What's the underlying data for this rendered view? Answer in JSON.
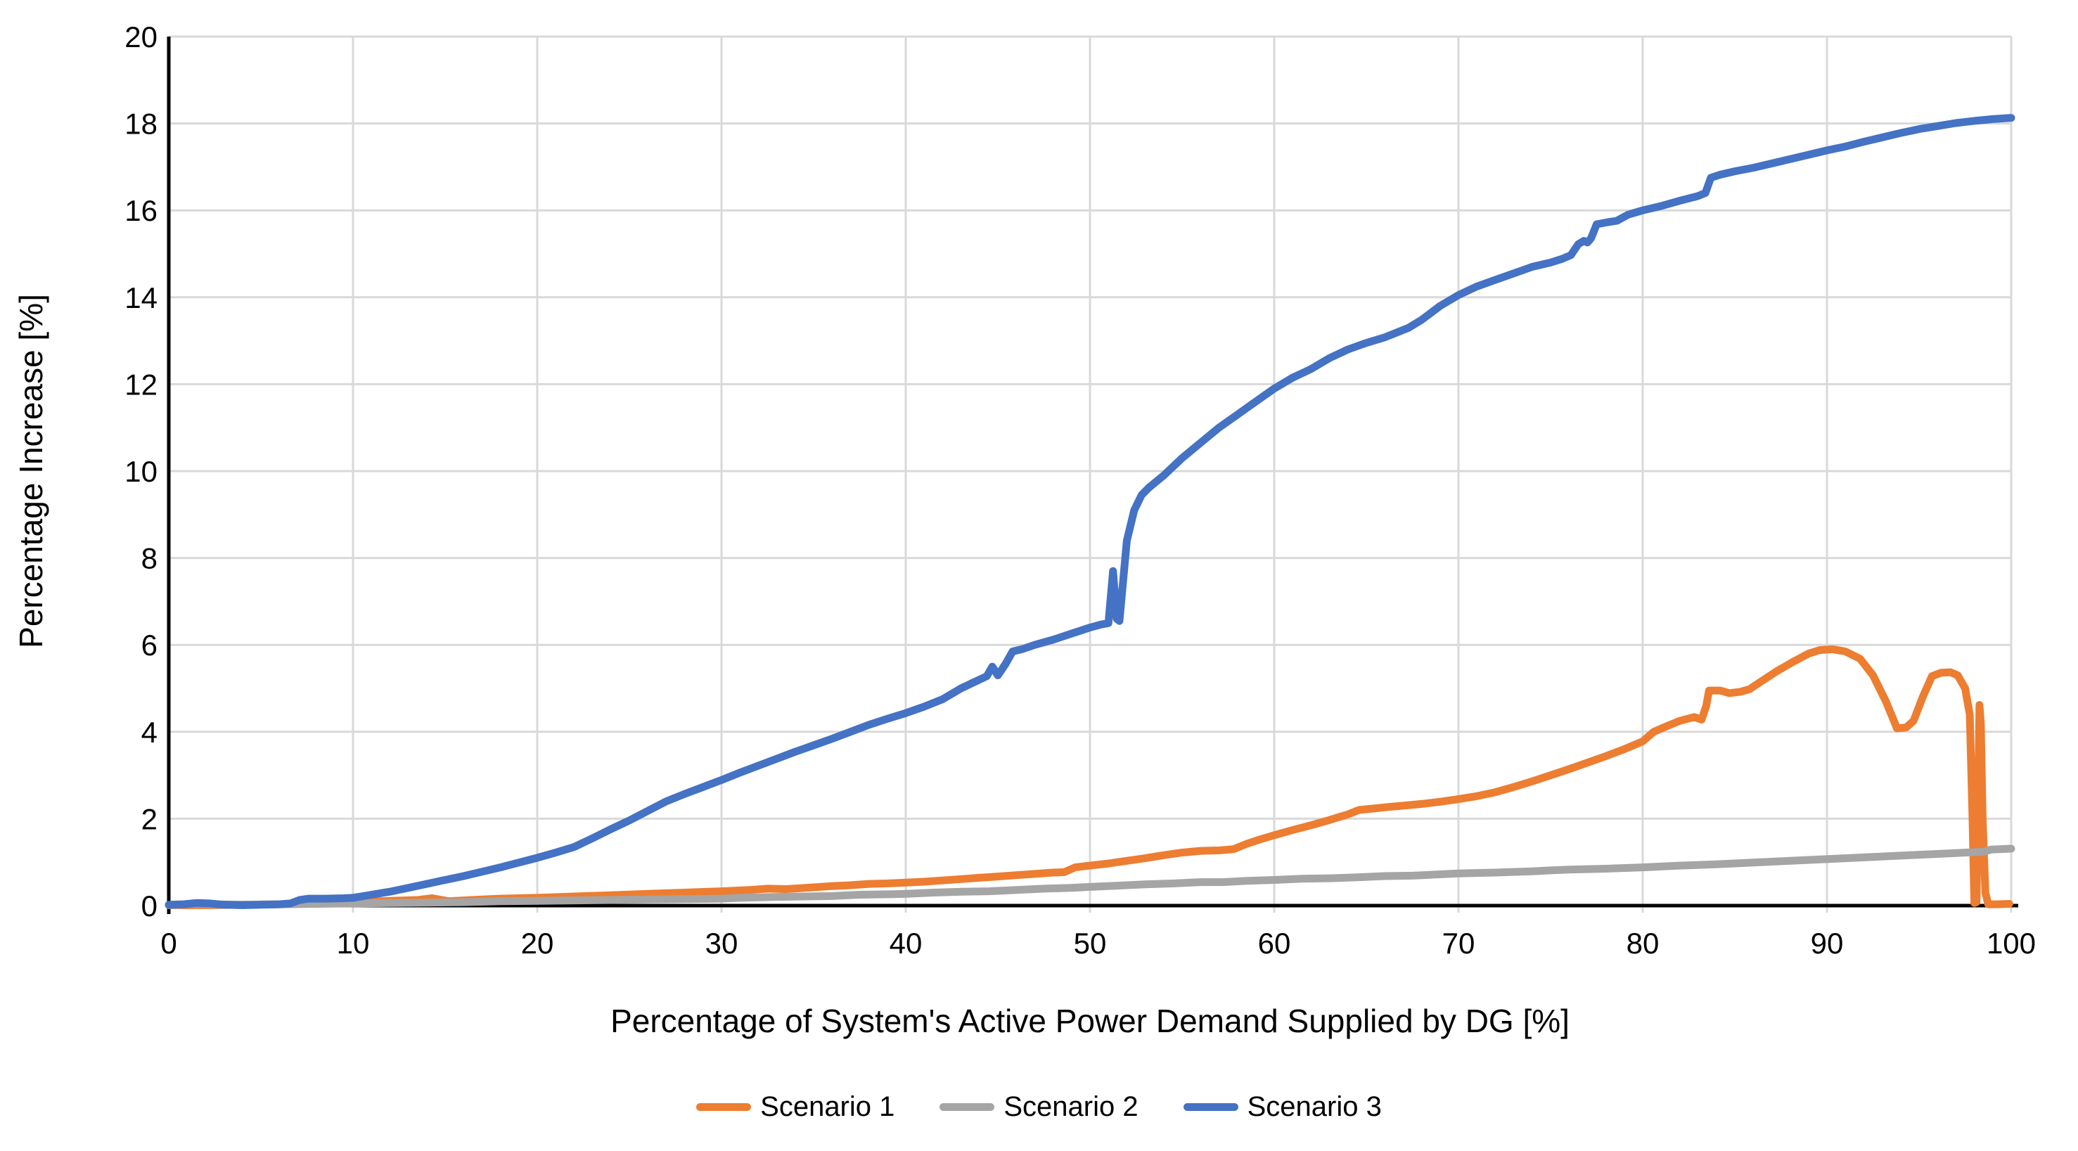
{
  "chart_data": {
    "type": "line",
    "title": "",
    "xlabel": "Percentage of System's Active Power Demand Supplied by DG [%]",
    "ylabel": "Percentage Increase [%]",
    "xlim": [
      0,
      100
    ],
    "ylim": [
      0,
      20
    ],
    "x_ticks": [
      0,
      10,
      20,
      30,
      40,
      50,
      60,
      70,
      80,
      90,
      100
    ],
    "y_ticks": [
      0,
      2,
      4,
      6,
      8,
      10,
      12,
      14,
      16,
      18,
      20
    ],
    "grid": true,
    "legend_position": "bottom-center",
    "gridline_color": "#D9D9D9",
    "axis_color": "#000000",
    "background_color": "#FFFFFF",
    "series": [
      {
        "name": "Scenario 1",
        "color": "#ED7D31",
        "points": [
          [
            0,
            0.01
          ],
          [
            2,
            0.01
          ],
          [
            4,
            0.02
          ],
          [
            6,
            0.03
          ],
          [
            8,
            0.05
          ],
          [
            10,
            0.08
          ],
          [
            12,
            0.11
          ],
          [
            13.5,
            0.13
          ],
          [
            14.3,
            0.17
          ],
          [
            15.2,
            0.1
          ],
          [
            16,
            0.12
          ],
          [
            17,
            0.14
          ],
          [
            18,
            0.16
          ],
          [
            19,
            0.17
          ],
          [
            20,
            0.18
          ],
          [
            22,
            0.21
          ],
          [
            24,
            0.24
          ],
          [
            26,
            0.27
          ],
          [
            28,
            0.3
          ],
          [
            30,
            0.33
          ],
          [
            31.5,
            0.36
          ],
          [
            32.5,
            0.39
          ],
          [
            33.5,
            0.38
          ],
          [
            35,
            0.42
          ],
          [
            36,
            0.45
          ],
          [
            37,
            0.47
          ],
          [
            38,
            0.5
          ],
          [
            39,
            0.51
          ],
          [
            40,
            0.53
          ],
          [
            41,
            0.55
          ],
          [
            42,
            0.58
          ],
          [
            43,
            0.61
          ],
          [
            44,
            0.64
          ],
          [
            45,
            0.67
          ],
          [
            46,
            0.7
          ],
          [
            47,
            0.73
          ],
          [
            48,
            0.76
          ],
          [
            48.6,
            0.77
          ],
          [
            49.2,
            0.88
          ],
          [
            50,
            0.92
          ],
          [
            51,
            0.97
          ],
          [
            52,
            1.03
          ],
          [
            53,
            1.09
          ],
          [
            54,
            1.16
          ],
          [
            55,
            1.22
          ],
          [
            56,
            1.26
          ],
          [
            57,
            1.27
          ],
          [
            57.8,
            1.3
          ],
          [
            58.5,
            1.42
          ],
          [
            59.2,
            1.52
          ],
          [
            60,
            1.62
          ],
          [
            61,
            1.74
          ],
          [
            62,
            1.85
          ],
          [
            63,
            1.97
          ],
          [
            64,
            2.1
          ],
          [
            64.6,
            2.2
          ],
          [
            65.5,
            2.24
          ],
          [
            66.2,
            2.27
          ],
          [
            67,
            2.3
          ],
          [
            68,
            2.34
          ],
          [
            69,
            2.39
          ],
          [
            70,
            2.45
          ],
          [
            71,
            2.52
          ],
          [
            72,
            2.61
          ],
          [
            73,
            2.73
          ],
          [
            74,
            2.86
          ],
          [
            75,
            3
          ],
          [
            76,
            3.14
          ],
          [
            77,
            3.29
          ],
          [
            78,
            3.44
          ],
          [
            79,
            3.6
          ],
          [
            80,
            3.78
          ],
          [
            80.6,
            4
          ],
          [
            81.3,
            4.13
          ],
          [
            82,
            4.25
          ],
          [
            82.8,
            4.34
          ],
          [
            83.2,
            4.28
          ],
          [
            83.45,
            4.6
          ],
          [
            83.6,
            4.95
          ],
          [
            84.2,
            4.95
          ],
          [
            84.7,
            4.89
          ],
          [
            85.3,
            4.92
          ],
          [
            85.8,
            4.98
          ],
          [
            86.5,
            5.18
          ],
          [
            87.3,
            5.4
          ],
          [
            88.2,
            5.62
          ],
          [
            89,
            5.8
          ],
          [
            89.6,
            5.88
          ],
          [
            90.3,
            5.9
          ],
          [
            91,
            5.85
          ],
          [
            91.8,
            5.68
          ],
          [
            92.5,
            5.3
          ],
          [
            93.2,
            4.7
          ],
          [
            93.8,
            4.08
          ],
          [
            94.3,
            4.1
          ],
          [
            94.7,
            4.25
          ],
          [
            95.2,
            4.8
          ],
          [
            95.7,
            5.28
          ],
          [
            96.2,
            5.36
          ],
          [
            96.7,
            5.37
          ],
          [
            97.1,
            5.3
          ],
          [
            97.5,
            5
          ],
          [
            97.75,
            4.4
          ],
          [
            97.9,
            2
          ],
          [
            98,
            0.06
          ],
          [
            98.12,
            0.08
          ],
          [
            98.22,
            3
          ],
          [
            98.28,
            4.62
          ],
          [
            98.35,
            4.2
          ],
          [
            98.45,
            2
          ],
          [
            98.6,
            0.3
          ],
          [
            98.75,
            0.03
          ],
          [
            99.2,
            0.03
          ],
          [
            99.9,
            0.04
          ]
        ]
      },
      {
        "name": "Scenario 2",
        "color": "#A5A5A5",
        "points": [
          [
            0,
            0.01
          ],
          [
            1.5,
            0.05
          ],
          [
            2.5,
            0.03
          ],
          [
            4,
            0.02
          ],
          [
            6,
            0.03
          ],
          [
            8,
            0.04
          ],
          [
            10,
            0.05
          ],
          [
            12,
            0.06
          ],
          [
            14,
            0.07
          ],
          [
            16,
            0.08
          ],
          [
            18,
            0.1
          ],
          [
            20,
            0.11
          ],
          [
            22,
            0.12
          ],
          [
            24,
            0.13
          ],
          [
            26,
            0.14
          ],
          [
            28,
            0.15
          ],
          [
            30,
            0.16
          ],
          [
            31,
            0.18
          ],
          [
            33,
            0.2
          ],
          [
            34.5,
            0.21
          ],
          [
            36,
            0.22
          ],
          [
            37.5,
            0.25
          ],
          [
            39,
            0.26
          ],
          [
            40,
            0.27
          ],
          [
            41.5,
            0.3
          ],
          [
            43,
            0.32
          ],
          [
            44.5,
            0.33
          ],
          [
            46,
            0.36
          ],
          [
            47.5,
            0.39
          ],
          [
            49,
            0.41
          ],
          [
            50,
            0.43
          ],
          [
            51.5,
            0.46
          ],
          [
            53,
            0.49
          ],
          [
            54.5,
            0.51
          ],
          [
            56,
            0.54
          ],
          [
            57.2,
            0.54
          ],
          [
            58.5,
            0.57
          ],
          [
            60,
            0.59
          ],
          [
            61.5,
            0.62
          ],
          [
            63,
            0.63
          ],
          [
            64.5,
            0.65
          ],
          [
            66,
            0.68
          ],
          [
            67.5,
            0.69
          ],
          [
            69,
            0.72
          ],
          [
            70,
            0.74
          ],
          [
            72,
            0.76
          ],
          [
            74,
            0.79
          ],
          [
            75,
            0.81
          ],
          [
            76,
            0.83
          ],
          [
            78,
            0.85
          ],
          [
            80,
            0.88
          ],
          [
            82,
            0.92
          ],
          [
            84,
            0.95
          ],
          [
            86,
            0.99
          ],
          [
            88,
            1.03
          ],
          [
            90,
            1.07
          ],
          [
            92,
            1.11
          ],
          [
            94,
            1.15
          ],
          [
            96,
            1.19
          ],
          [
            97.5,
            1.22
          ],
          [
            98.5,
            1.24
          ],
          [
            98.9,
            1.29
          ],
          [
            100,
            1.31
          ]
        ]
      },
      {
        "name": "Scenario 3",
        "color": "#4472C4",
        "points": [
          [
            0,
            0.02
          ],
          [
            0.8,
            0.03
          ],
          [
            1.5,
            0.06
          ],
          [
            2.2,
            0.05
          ],
          [
            3,
            0.02
          ],
          [
            4,
            0.01
          ],
          [
            5,
            0.02
          ],
          [
            6,
            0.03
          ],
          [
            6.6,
            0.05
          ],
          [
            7.1,
            0.13
          ],
          [
            7.6,
            0.16
          ],
          [
            8.5,
            0.16
          ],
          [
            9.5,
            0.17
          ],
          [
            10,
            0.18
          ],
          [
            11,
            0.25
          ],
          [
            12,
            0.32
          ],
          [
            13,
            0.41
          ],
          [
            14,
            0.5
          ],
          [
            15,
            0.59
          ],
          [
            16,
            0.68
          ],
          [
            17,
            0.78
          ],
          [
            18,
            0.88
          ],
          [
            19,
            0.99
          ],
          [
            20,
            1.1
          ],
          [
            21,
            1.22
          ],
          [
            22,
            1.35
          ],
          [
            23,
            1.55
          ],
          [
            24,
            1.76
          ],
          [
            25,
            1.96
          ],
          [
            26,
            2.18
          ],
          [
            27,
            2.4
          ],
          [
            28,
            2.57
          ],
          [
            29,
            2.73
          ],
          [
            30,
            2.89
          ],
          [
            31,
            3.06
          ],
          [
            32,
            3.22
          ],
          [
            33,
            3.38
          ],
          [
            34,
            3.54
          ],
          [
            35,
            3.69
          ],
          [
            36,
            3.84
          ],
          [
            37,
            4
          ],
          [
            38,
            4.16
          ],
          [
            39,
            4.3
          ],
          [
            40,
            4.43
          ],
          [
            41,
            4.58
          ],
          [
            42,
            4.75
          ],
          [
            43,
            5
          ],
          [
            44,
            5.2
          ],
          [
            44.4,
            5.28
          ],
          [
            44.7,
            5.5
          ],
          [
            45,
            5.3
          ],
          [
            45.4,
            5.55
          ],
          [
            45.8,
            5.85
          ],
          [
            46.3,
            5.9
          ],
          [
            47,
            6
          ],
          [
            48,
            6.12
          ],
          [
            49,
            6.26
          ],
          [
            50,
            6.4
          ],
          [
            50.6,
            6.47
          ],
          [
            51,
            6.5
          ],
          [
            51.25,
            7.7
          ],
          [
            51.45,
            6.6
          ],
          [
            51.6,
            6.55
          ],
          [
            52,
            8.4
          ],
          [
            52.4,
            9.1
          ],
          [
            52.8,
            9.45
          ],
          [
            53.2,
            9.62
          ],
          [
            54,
            9.9
          ],
          [
            55,
            10.3
          ],
          [
            56,
            10.65
          ],
          [
            57,
            11
          ],
          [
            58,
            11.3
          ],
          [
            59,
            11.6
          ],
          [
            60,
            11.9
          ],
          [
            61,
            12.15
          ],
          [
            62,
            12.35
          ],
          [
            63,
            12.6
          ],
          [
            64,
            12.8
          ],
          [
            65,
            12.95
          ],
          [
            66,
            13.08
          ],
          [
            66.6,
            13.18
          ],
          [
            67.3,
            13.3
          ],
          [
            68,
            13.48
          ],
          [
            69,
            13.8
          ],
          [
            70,
            14.05
          ],
          [
            71,
            14.25
          ],
          [
            72,
            14.4
          ],
          [
            73,
            14.55
          ],
          [
            74,
            14.7
          ],
          [
            75,
            14.8
          ],
          [
            75.6,
            14.88
          ],
          [
            76.1,
            14.97
          ],
          [
            76.5,
            15.22
          ],
          [
            76.8,
            15.3
          ],
          [
            77,
            15.26
          ],
          [
            77.2,
            15.36
          ],
          [
            77.5,
            15.68
          ],
          [
            78,
            15.72
          ],
          [
            78.6,
            15.76
          ],
          [
            79.2,
            15.9
          ],
          [
            80,
            16
          ],
          [
            81,
            16.1
          ],
          [
            82,
            16.22
          ],
          [
            83,
            16.33
          ],
          [
            83.4,
            16.4
          ],
          [
            83.7,
            16.75
          ],
          [
            84.2,
            16.82
          ],
          [
            85,
            16.9
          ],
          [
            86,
            16.98
          ],
          [
            87,
            17.08
          ],
          [
            88,
            17.18
          ],
          [
            89,
            17.28
          ],
          [
            90,
            17.38
          ],
          [
            91,
            17.47
          ],
          [
            92,
            17.58
          ],
          [
            93,
            17.68
          ],
          [
            94,
            17.78
          ],
          [
            95,
            17.87
          ],
          [
            96,
            17.94
          ],
          [
            97,
            18.01
          ],
          [
            98,
            18.06
          ],
          [
            99,
            18.1
          ],
          [
            100,
            18.13
          ]
        ]
      }
    ]
  }
}
